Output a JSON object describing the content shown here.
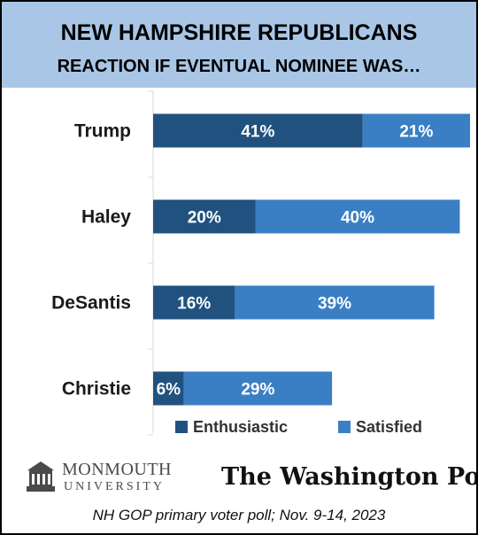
{
  "header": {
    "title_line_1": "NEW HAMPSHIRE REPUBLICANS",
    "title_line_2": "REACTION IF EVENTUAL NOMINEE WAS…"
  },
  "colors": {
    "title_band": "#a9c6e6",
    "enthusiastic": "#21517f",
    "satisfied": "#3a7fc4",
    "axis": "#d9d9d9"
  },
  "chart_data": {
    "type": "bar",
    "orientation": "horizontal",
    "stacked": true,
    "categories": [
      "Trump",
      "Haley",
      "DeSantis",
      "Christie"
    ],
    "series": [
      {
        "name": "Enthusiastic",
        "values": [
          41,
          20,
          16,
          6
        ]
      },
      {
        "name": "Satisfied",
        "values": [
          21,
          40,
          39,
          29
        ]
      }
    ],
    "data_labels": [
      [
        "41%",
        "21%"
      ],
      [
        "20%",
        "40%"
      ],
      [
        "16%",
        "39%"
      ],
      [
        "6%",
        "29%"
      ]
    ],
    "xlim": [
      0,
      62
    ],
    "grid": false,
    "legend": {
      "position": "bottom",
      "entries": [
        "Enthusiastic",
        "Satisfied"
      ]
    }
  },
  "logos": {
    "monmouth_name": "MONMOUTH",
    "monmouth_sub": "UNIVERSITY",
    "washington_post": "The Washington Post"
  },
  "footnote": "NH GOP primary voter poll;  Nov. 9-14, 2023"
}
